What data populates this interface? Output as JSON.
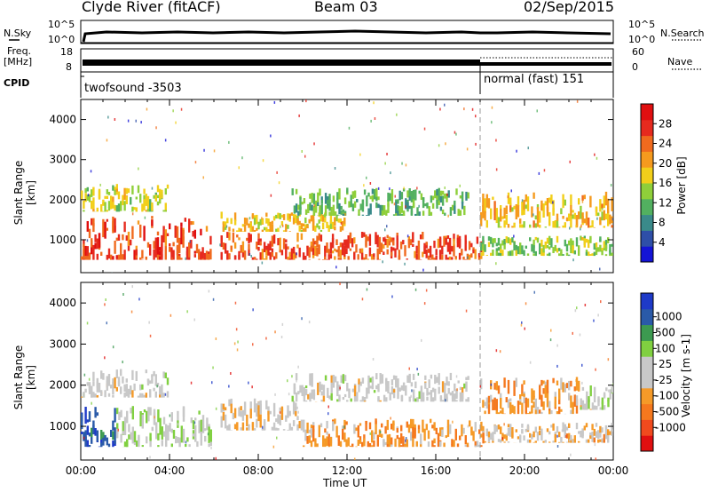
{
  "header": {
    "station": "Clyde River (fitACF)",
    "beam": "Beam 03",
    "date": "02/Sep/2015"
  },
  "strip": {
    "nsky_label": "N.Sky",
    "freq_label_1": "Freq.",
    "freq_label_2": "[MHz]",
    "cpid_label": "CPID",
    "nsearch_label": "N.Search",
    "nave_label": "Nave",
    "nsky_ticks": [
      "10^5",
      "10^0"
    ],
    "nsearch_ticks": [
      "10^5",
      "10^0"
    ],
    "freq_ticks": [
      "18",
      "8"
    ],
    "nave_ticks": [
      "60",
      "0"
    ],
    "cpid_1": "twofsound  -3503",
    "cpid_2": "normal (fast)  151",
    "cpid_switch_hour": 18.0
  },
  "chart_data": [
    {
      "type": "heatmap",
      "name": "Power",
      "xlabel": "",
      "ylabel": "Slant Range [km]",
      "xlim": [
        0,
        24
      ],
      "ylim": [
        180,
        4500
      ],
      "yticks": [
        1000,
        2000,
        3000,
        4000
      ],
      "colorbar": {
        "label": "Power [dB]",
        "ticks": [
          4,
          8,
          12,
          16,
          20,
          24,
          28
        ],
        "range": [
          0,
          32
        ],
        "colors": [
          "#1414d6",
          "#2e4fa8",
          "#3a8a8a",
          "#52b060",
          "#8fcf3a",
          "#f2cf1a",
          "#f59a1e",
          "#f06a1e",
          "#e62a1e",
          "#e00f10"
        ]
      },
      "bands": [
        {
          "x0": 0.0,
          "x1": 5.9,
          "y0": 500,
          "y1": 1600,
          "value": 26
        },
        {
          "x0": 0.0,
          "x1": 4.0,
          "y0": 1700,
          "y1": 2400,
          "value": 16
        },
        {
          "x0": 6.3,
          "x1": 18.2,
          "y0": 500,
          "y1": 1200,
          "value": 25
        },
        {
          "x0": 6.3,
          "x1": 12.0,
          "y0": 1200,
          "y1": 1700,
          "value": 18
        },
        {
          "x0": 9.5,
          "x1": 17.5,
          "y0": 1600,
          "y1": 2300,
          "value": 12
        },
        {
          "x0": 18.0,
          "x1": 24.0,
          "y0": 600,
          "y1": 1100,
          "value": 14
        },
        {
          "x0": 18.0,
          "x1": 24.0,
          "y0": 1300,
          "y1": 2200,
          "value": 19
        }
      ]
    },
    {
      "type": "heatmap",
      "name": "Velocity",
      "xlabel": "Time UT",
      "ylabel": "Slant Range [km]",
      "xlim": [
        0,
        24
      ],
      "ylim": [
        180,
        4500
      ],
      "yticks": [
        1000,
        2000,
        3000,
        4000
      ],
      "xticks": [
        "00:00",
        "04:00",
        "08:00",
        "12:00",
        "16:00",
        "20:00",
        "00:00"
      ],
      "colorbar": {
        "label": "Velocity [m s-1]",
        "ticks": [
          1000,
          500,
          100,
          25,
          -25,
          -100,
          -500,
          -1000
        ],
        "range": [
          -1200,
          1200
        ],
        "colors": [
          "#e00f10",
          "#f04a1e",
          "#f5781e",
          "#f59a28",
          "#c8c8c8",
          "#c8c8c8",
          "#80d040",
          "#3c9a50",
          "#2a5aa8",
          "#1e3ac8"
        ]
      },
      "bands": [
        {
          "x0": 0.0,
          "x1": 1.6,
          "y0": 500,
          "y1": 1500,
          "value": 900
        },
        {
          "x0": 1.6,
          "x1": 5.9,
          "y0": 500,
          "y1": 1500,
          "value": 150
        },
        {
          "x0": 0.0,
          "x1": 4.0,
          "y0": 1700,
          "y1": 2400,
          "value": -10
        },
        {
          "x0": 6.3,
          "x1": 10.0,
          "y0": 900,
          "y1": 1700,
          "value": -150
        },
        {
          "x0": 10.0,
          "x1": 18.2,
          "y0": 500,
          "y1": 1200,
          "value": -400
        },
        {
          "x0": 9.5,
          "x1": 17.5,
          "y0": 1600,
          "y1": 2300,
          "value": 0
        },
        {
          "x0": 18.0,
          "x1": 24.0,
          "y0": 600,
          "y1": 1100,
          "value": -200
        },
        {
          "x0": 18.0,
          "x1": 22.5,
          "y0": 1300,
          "y1": 2200,
          "value": -350
        },
        {
          "x0": 22.5,
          "x1": 24.0,
          "y0": 1400,
          "y1": 2000,
          "value": 0
        }
      ]
    }
  ]
}
